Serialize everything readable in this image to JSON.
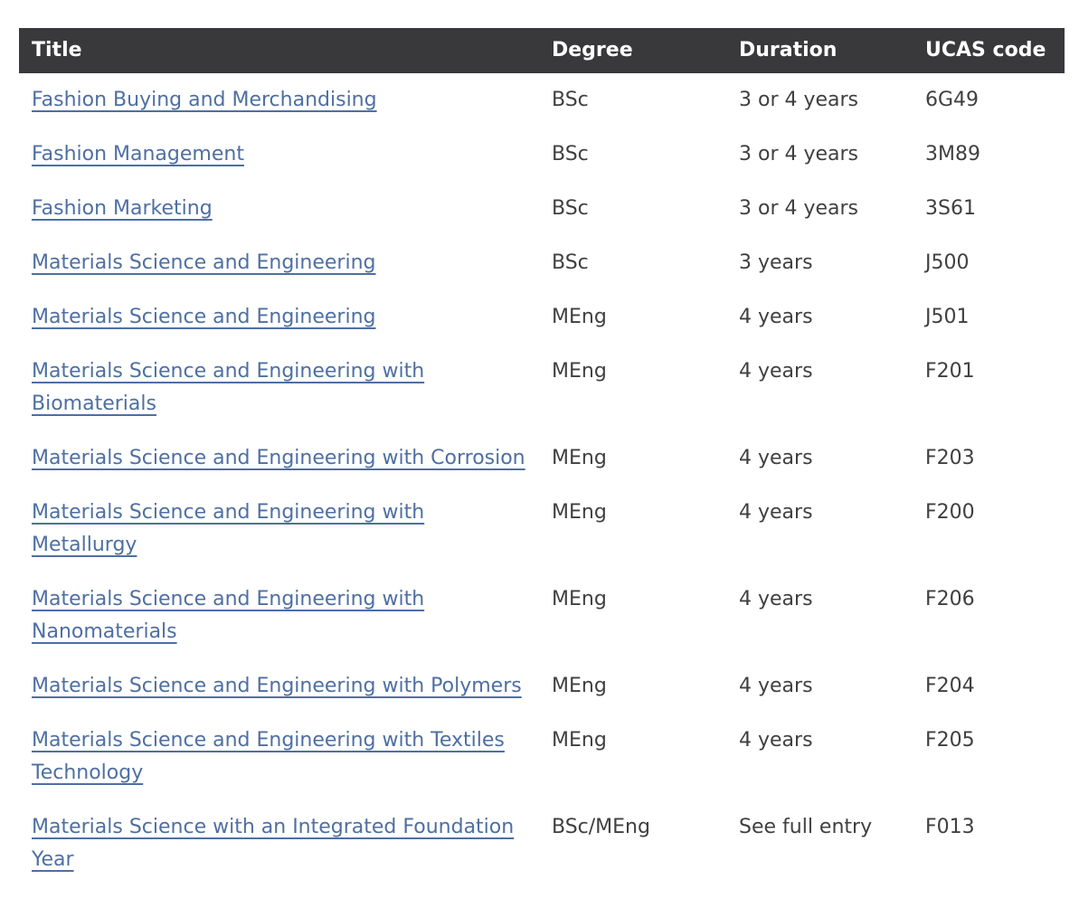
{
  "colors": {
    "header_bg": "#39393b",
    "header_text": "#ffffff",
    "link": "#4e6fa3",
    "body_text": "#404042"
  },
  "table": {
    "columns": [
      {
        "key": "title",
        "label": "Title"
      },
      {
        "key": "degree",
        "label": "Degree"
      },
      {
        "key": "duration",
        "label": "Duration"
      },
      {
        "key": "ucas",
        "label": "UCAS code"
      }
    ],
    "rows": [
      {
        "title": "Fashion Buying and Merchandising",
        "degree": "BSc",
        "duration": "3 or 4 years",
        "ucas": "6G49"
      },
      {
        "title": "Fashion Management",
        "degree": "BSc",
        "duration": "3 or 4 years",
        "ucas": "3M89"
      },
      {
        "title": "Fashion Marketing",
        "degree": "BSc",
        "duration": "3 or 4 years",
        "ucas": "3S61"
      },
      {
        "title": "Materials Science and Engineering",
        "degree": "BSc",
        "duration": "3 years",
        "ucas": "J500"
      },
      {
        "title": "Materials Science and Engineering",
        "degree": "MEng",
        "duration": "4 years",
        "ucas": "J501"
      },
      {
        "title": "Materials Science and Engineering with Biomaterials",
        "degree": "MEng",
        "duration": "4 years",
        "ucas": "F201"
      },
      {
        "title": "Materials Science and Engineering with Corrosion",
        "degree": "MEng",
        "duration": "4 years",
        "ucas": "F203"
      },
      {
        "title": "Materials Science and Engineering with Metallurgy",
        "degree": "MEng",
        "duration": "4 years",
        "ucas": "F200"
      },
      {
        "title": "Materials Science and Engineering with Nanomaterials",
        "degree": "MEng",
        "duration": "4 years",
        "ucas": "F206"
      },
      {
        "title": "Materials Science and Engineering with Polymers",
        "degree": "MEng",
        "duration": "4 years",
        "ucas": "F204"
      },
      {
        "title": "Materials Science and Engineering with Textiles Technology",
        "degree": "MEng",
        "duration": "4 years",
        "ucas": "F205"
      },
      {
        "title": "Materials Science with an Integrated Foundation Year",
        "degree": "BSc/MEng",
        "duration": "See full entry",
        "ucas": "F013"
      }
    ]
  }
}
